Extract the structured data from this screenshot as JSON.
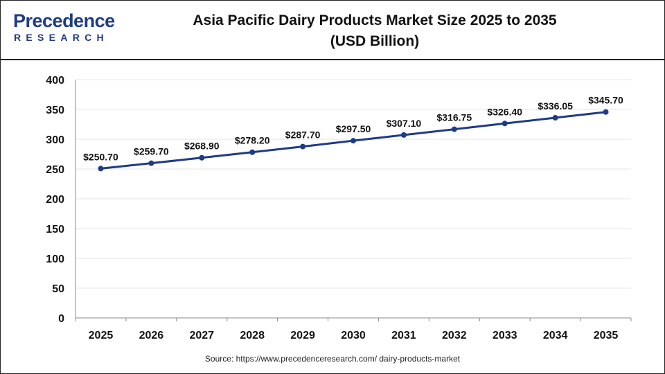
{
  "header": {
    "logo_line1": "Precedence",
    "logo_line2": "RESEARCH",
    "title_line1": "Asia Pacific Dairy Products Market Size 2025 to 2035",
    "title_line2": "(USD Billion)"
  },
  "source": "Source: https://www.precedenceresearch.com/ dairy-products-market",
  "colors": {
    "line": "#1f3b86",
    "marker": "#1f3b86",
    "brand": "#1f3b86",
    "grid": "#e6e6e6",
    "axis": "#888888"
  },
  "chart_data": {
    "type": "line",
    "title": "Asia Pacific Dairy Products Market Size 2025 to 2035 (USD Billion)",
    "xlabel": "",
    "ylabel": "",
    "categories": [
      "2025",
      "2026",
      "2027",
      "2028",
      "2029",
      "2030",
      "2031",
      "2032",
      "2033",
      "2034",
      "2035"
    ],
    "series": [
      {
        "values": [
          250.7,
          259.7,
          268.9,
          278.2,
          287.7,
          297.5,
          307.1,
          316.75,
          326.4,
          336.05,
          345.7
        ],
        "data_labels": [
          "$250.70",
          "$259.70",
          "$268.90",
          "$278.20",
          "$287.70",
          "$297.50",
          "$307.10",
          "$316.75",
          "$326.40",
          "$336.05",
          "$345.70"
        ]
      }
    ],
    "ylim": [
      0,
      400
    ],
    "yticks": [
      "0",
      "50",
      "100",
      "150",
      "200",
      "250",
      "300",
      "350",
      "400"
    ],
    "grid": true,
    "legend": "none"
  }
}
